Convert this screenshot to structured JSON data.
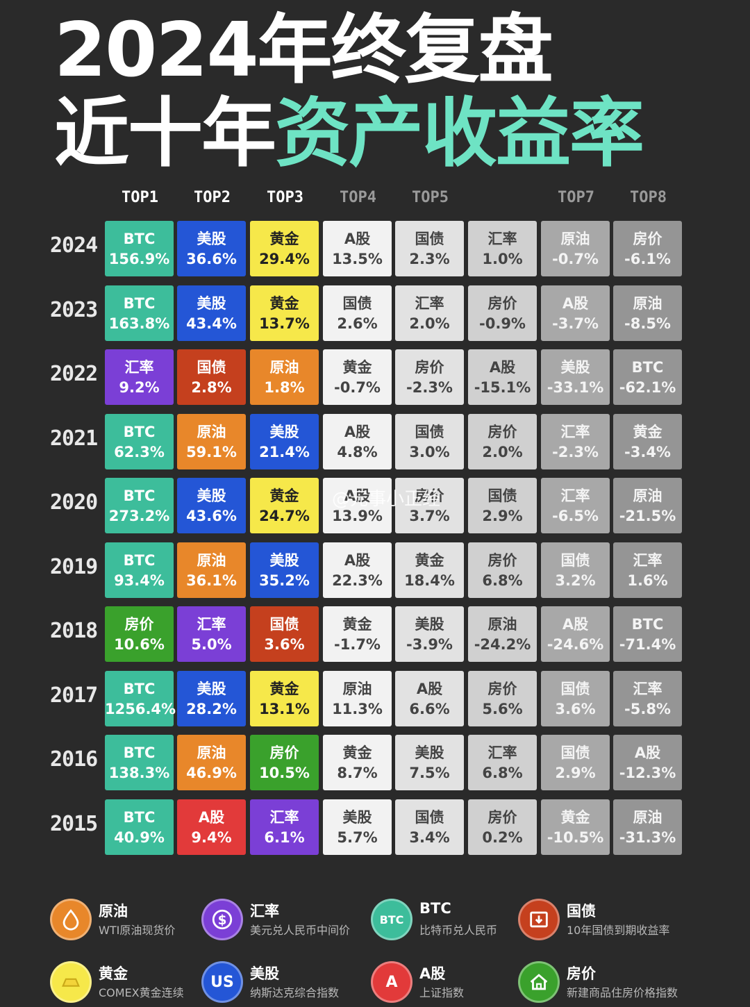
{
  "title": {
    "line1": "2024年终复盘",
    "line2_plain": "近十年",
    "line2_highlight": "资产收益率"
  },
  "header": [
    "TOP1",
    "TOP2",
    "TOP3",
    "TOP4",
    "TOP5",
    "",
    "TOP7",
    "TOP8"
  ],
  "rows": [
    {
      "year": "2024",
      "cells": [
        [
          "BTC",
          "156.9%"
        ],
        [
          "美股",
          "36.6%"
        ],
        [
          "黄金",
          "29.4%"
        ],
        [
          "A股",
          "13.5%"
        ],
        [
          "国债",
          "2.3%"
        ],
        [
          "汇率",
          "1.0%"
        ],
        [
          "原油",
          "-0.7%"
        ],
        [
          "房价",
          "-6.1%"
        ]
      ]
    },
    {
      "year": "2023",
      "cells": [
        [
          "BTC",
          "163.8%"
        ],
        [
          "美股",
          "43.4%"
        ],
        [
          "黄金",
          "13.7%"
        ],
        [
          "国债",
          "2.6%"
        ],
        [
          "汇率",
          "2.0%"
        ],
        [
          "房价",
          "-0.9%"
        ],
        [
          "A股",
          "-3.7%"
        ],
        [
          "原油",
          "-8.5%"
        ]
      ]
    },
    {
      "year": "2022",
      "cells": [
        [
          "汇率",
          "9.2%"
        ],
        [
          "国债",
          "2.8%"
        ],
        [
          "原油",
          "1.8%"
        ],
        [
          "黄金",
          "-0.7%"
        ],
        [
          "房价",
          "-2.3%"
        ],
        [
          "A股",
          "-15.1%"
        ],
        [
          "美股",
          "-33.1%"
        ],
        [
          "BTC",
          "-62.1%"
        ]
      ]
    },
    {
      "year": "2021",
      "cells": [
        [
          "BTC",
          "62.3%"
        ],
        [
          "原油",
          "59.1%"
        ],
        [
          "美股",
          "21.4%"
        ],
        [
          "A股",
          "4.8%"
        ],
        [
          "国债",
          "3.0%"
        ],
        [
          "房价",
          "2.0%"
        ],
        [
          "汇率",
          "-2.3%"
        ],
        [
          "黄金",
          "-3.4%"
        ]
      ]
    },
    {
      "year": "2020",
      "cells": [
        [
          "BTC",
          "273.2%"
        ],
        [
          "美股",
          "43.6%"
        ],
        [
          "黄金",
          "24.7%"
        ],
        [
          "A股",
          "13.9%"
        ],
        [
          "房价",
          "3.7%"
        ],
        [
          "国债",
          "2.9%"
        ],
        [
          "汇率",
          "-6.5%"
        ],
        [
          "原油",
          "-21.5%"
        ]
      ]
    },
    {
      "year": "2019",
      "cells": [
        [
          "BTC",
          "93.4%"
        ],
        [
          "原油",
          "36.1%"
        ],
        [
          "美股",
          "35.2%"
        ],
        [
          "A股",
          "22.3%"
        ],
        [
          "黄金",
          "18.4%"
        ],
        [
          "房价",
          "6.8%"
        ],
        [
          "国债",
          "3.2%"
        ],
        [
          "汇率",
          "1.6%"
        ]
      ]
    },
    {
      "year": "2018",
      "cells": [
        [
          "房价",
          "10.6%"
        ],
        [
          "汇率",
          "5.0%"
        ],
        [
          "国债",
          "3.6%"
        ],
        [
          "黄金",
          "-1.7%"
        ],
        [
          "美股",
          "-3.9%"
        ],
        [
          "原油",
          "-24.2%"
        ],
        [
          "A股",
          "-24.6%"
        ],
        [
          "BTC",
          "-71.4%"
        ]
      ]
    },
    {
      "year": "2017",
      "cells": [
        [
          "BTC",
          "1256.4%"
        ],
        [
          "美股",
          "28.2%"
        ],
        [
          "黄金",
          "13.1%"
        ],
        [
          "原油",
          "11.3%"
        ],
        [
          "A股",
          "6.6%"
        ],
        [
          "房价",
          "5.6%"
        ],
        [
          "国债",
          "3.6%"
        ],
        [
          "汇率",
          "-5.8%"
        ]
      ]
    },
    {
      "year": "2016",
      "cells": [
        [
          "BTC",
          "138.3%"
        ],
        [
          "原油",
          "46.9%"
        ],
        [
          "房价",
          "10.5%"
        ],
        [
          "黄金",
          "8.7%"
        ],
        [
          "美股",
          "7.5%"
        ],
        [
          "汇率",
          "6.8%"
        ],
        [
          "国债",
          "2.9%"
        ],
        [
          "A股",
          "-12.3%"
        ]
      ]
    },
    {
      "year": "2015",
      "cells": [
        [
          "BTC",
          "40.9%"
        ],
        [
          "A股",
          "9.4%"
        ],
        [
          "汇率",
          "6.1%"
        ],
        [
          "美股",
          "5.7%"
        ],
        [
          "国债",
          "3.4%"
        ],
        [
          "房价",
          "0.2%"
        ],
        [
          "黄金",
          "-10.5%"
        ],
        [
          "原油",
          "-31.3%"
        ]
      ]
    }
  ],
  "colors": {
    "BTC": "#3dbd9b",
    "美股": "#2456d6",
    "黄金": "#f6e84a",
    "汇率": "#7b3fd6",
    "国债": "#c5401e",
    "原油": "#e8872a",
    "房价": "#3aa12c",
    "A股": "#e23a3a",
    "rank4": "#f2f2f2",
    "rank5": "#e2e2e2",
    "rank6": "#d0d0d0",
    "rank7": "#a8a8a8",
    "rank8": "#959595"
  },
  "legend": [
    {
      "name": "原油",
      "desc": "WTI原油现货价",
      "icon": "oil-drop-icon",
      "color": "#e8872a"
    },
    {
      "name": "汇率",
      "desc": "美元兑人民币中间价",
      "icon": "dollar-icon",
      "color": "#7b3fd6"
    },
    {
      "name": "BTC",
      "desc": "比特币兑人民币",
      "icon": "btc-icon",
      "color": "#3dbd9b",
      "icon_text": "BTC"
    },
    {
      "name": "国债",
      "desc": "10年国债到期收益率",
      "icon": "bond-icon",
      "color": "#c5401e"
    },
    {
      "name": "黄金",
      "desc": "COMEX黄金连续",
      "icon": "gold-ingot-icon",
      "color": "#f6e84a"
    },
    {
      "name": "美股",
      "desc": "纳斯达克综合指数",
      "icon": "us-stock-icon",
      "color": "#2456d6",
      "icon_text": "US"
    },
    {
      "name": "A股",
      "desc": "上证指数",
      "icon": "a-share-icon",
      "color": "#e23a3a",
      "icon_text": "A"
    },
    {
      "name": "房价",
      "desc": "新建商品住房价格指数",
      "icon": "house-icon",
      "color": "#3aa12c"
    }
  ],
  "watermark": "@元事小正经"
}
